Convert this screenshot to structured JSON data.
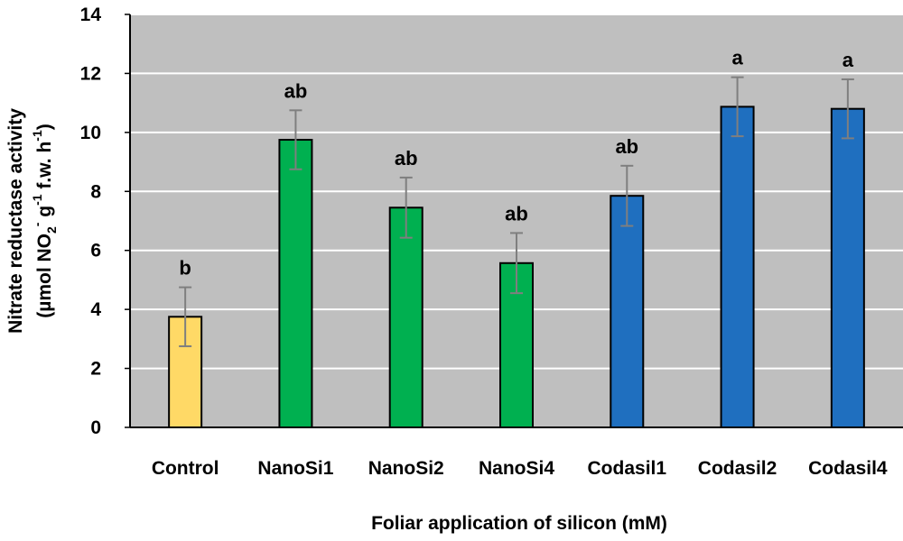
{
  "chart_data": {
    "type": "bar",
    "title": "",
    "xlabel": "Foliar application of silicon (mM)",
    "ylabel_line1": "Nitrate reductase activity",
    "ylabel_line2": {
      "pre": "(µmol NO",
      "sub": "2",
      "sup1": "-",
      "mid": " g",
      "sup2": "-1",
      "mid2": " f.w. h",
      "sup3": "-1",
      "post": ")"
    },
    "ylim": [
      0,
      14
    ],
    "yticks": [
      0,
      2,
      4,
      6,
      8,
      10,
      12,
      14
    ],
    "grid": true,
    "legend": "none",
    "categories": [
      "Control",
      "NanoSi1",
      "NanoSi2",
      "NanoSi4",
      "Codasil1",
      "Codasil2",
      "Codasil4"
    ],
    "values": [
      3.75,
      9.75,
      7.45,
      5.57,
      7.85,
      10.87,
      10.8
    ],
    "errors": [
      1.0,
      1.0,
      1.02,
      1.02,
      1.02,
      1.0,
      1.0
    ],
    "significance": [
      "b",
      "ab",
      "ab",
      "ab",
      "ab",
      "a",
      "a"
    ],
    "colors": [
      "#FFD966",
      "#00B050",
      "#00B050",
      "#00B050",
      "#1F6FBF",
      "#1F6FBF",
      "#1F6FBF"
    ],
    "plot_background": "#BFBFBF",
    "gridline_color": "#FFFFFF",
    "error_bar_color": "#7F7F7F"
  }
}
